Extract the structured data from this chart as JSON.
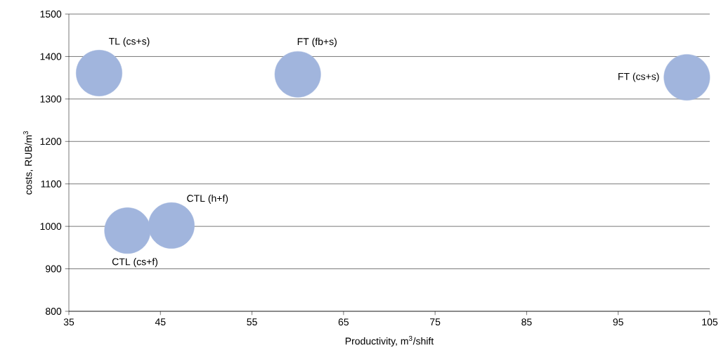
{
  "chart_data": {
    "type": "bubble",
    "xlabel": "Productivity, m$^{3}$/shift",
    "ylabel": "costs, RUB/m$^{3}$",
    "x": [
      38.3,
      60.0,
      102.5,
      46.2,
      41.4
    ],
    "values": [
      1361,
      1358,
      1351,
      1002,
      990
    ],
    "sizes": [
      1,
      1,
      1,
      1,
      1
    ],
    "color": "#a1b5dd",
    "annotations": [
      {
        "text": "TL (cs+s)",
        "x": 38.3,
        "y": 1361
      },
      {
        "text": "FT (fb+s)",
        "x": 60.0,
        "y": 1358
      },
      {
        "text": "FT (cs+s)",
        "x": 102.5,
        "y": 1351
      },
      {
        "text": "CTL (h+f)",
        "x": 46.2,
        "y": 1002
      },
      {
        "text": "CTL (cs+f)",
        "x": 41.4,
        "y": 990
      }
    ],
    "xlim": [
      35,
      105
    ],
    "xticks": [
      35,
      45,
      55,
      65,
      75,
      85,
      95,
      105
    ],
    "ylim": [
      800,
      1500
    ],
    "yticks": [
      800,
      900,
      1000,
      1100,
      1200,
      1300,
      1400,
      1500
    ],
    "grid": "y"
  }
}
